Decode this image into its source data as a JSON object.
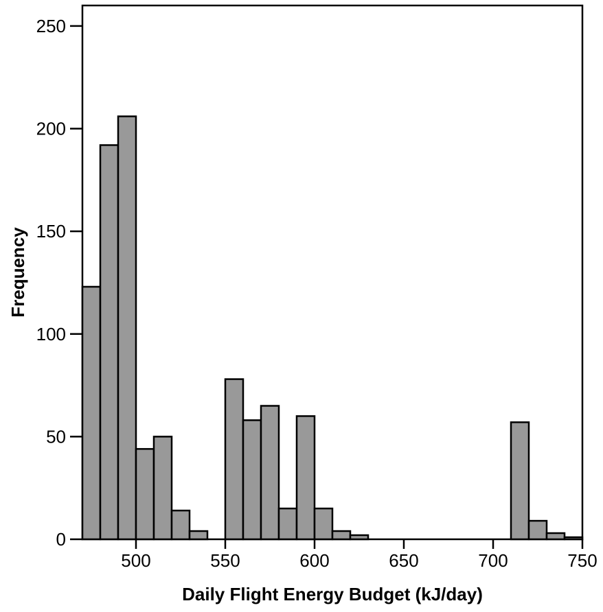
{
  "chart_data": {
    "type": "bar",
    "title": "",
    "xlabel": "Daily Flight Energy Budget (kJ/day)",
    "ylabel": "Frequency",
    "xlim": [
      470,
      750
    ],
    "ylim": [
      0,
      260
    ],
    "x_ticks": [
      500,
      550,
      600,
      650,
      700,
      750
    ],
    "y_ticks": [
      0,
      50,
      100,
      150,
      200,
      250
    ],
    "bin_width": 10,
    "bins_start": [
      470,
      480,
      490,
      500,
      510,
      520,
      530,
      540,
      550,
      560,
      570,
      580,
      590,
      600,
      610,
      620,
      630,
      640,
      650,
      660,
      670,
      680,
      690,
      700,
      710,
      720,
      730,
      740
    ],
    "values": [
      123,
      192,
      206,
      44,
      50,
      14,
      4,
      0,
      78,
      58,
      65,
      15,
      60,
      15,
      4,
      2,
      0,
      0,
      0,
      0,
      0,
      0,
      0,
      0,
      57,
      9,
      3,
      1
    ],
    "grid": false,
    "legend": "none",
    "bar_color": "#999999"
  }
}
